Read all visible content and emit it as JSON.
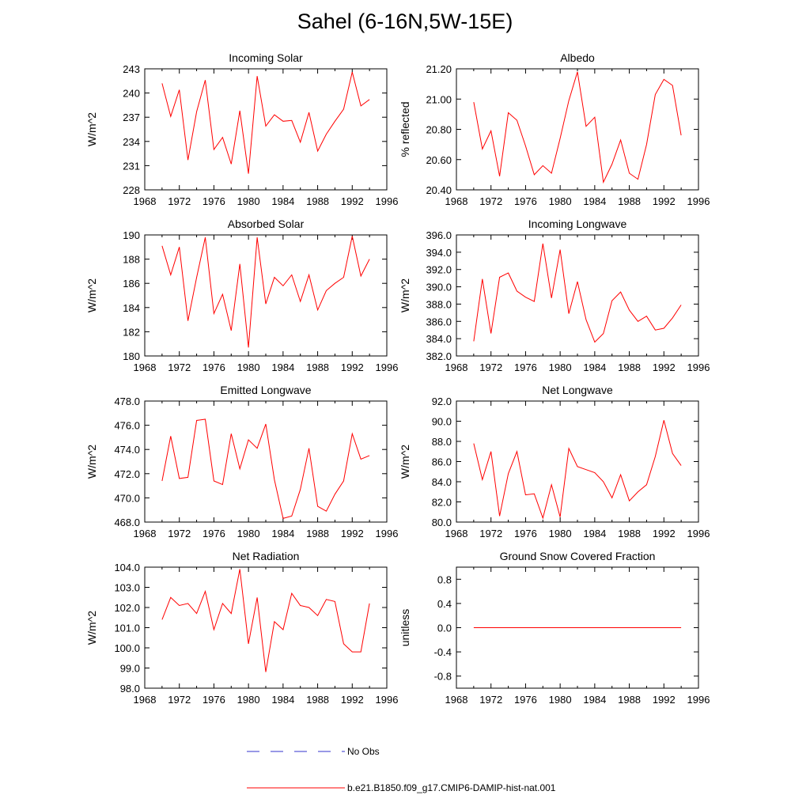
{
  "page_title": "Sahel (6-16N,5W-15E)",
  "line_color": "#ff0000",
  "obs_line_color": "#3333cc",
  "legend": {
    "obs_label": "No Obs",
    "model_label": "b.e21.B1850.f09_g17.CMIP6-DAMIP-hist-nat.001"
  },
  "chart_data": [
    {
      "type": "line",
      "title": "Incoming Solar",
      "ylabel": "W/m^2",
      "xlim": [
        1968,
        1996
      ],
      "x_ticks": [
        "1968",
        "1972",
        "1976",
        "1980",
        "1984",
        "1988",
        "1992",
        "1996"
      ],
      "ylim": [
        228,
        243
      ],
      "y_ticks": [
        "228",
        "231",
        "234",
        "237",
        "240",
        "243"
      ],
      "x": [
        1970,
        1971,
        1972,
        1973,
        1974,
        1975,
        1976,
        1977,
        1978,
        1979,
        1980,
        1981,
        1982,
        1983,
        1984,
        1985,
        1986,
        1987,
        1988,
        1989,
        1990,
        1991,
        1992,
        1993,
        1994
      ],
      "values": [
        241.2,
        237.1,
        240.4,
        231.7,
        237.7,
        241.6,
        233.0,
        234.5,
        231.2,
        237.8,
        230.0,
        242.1,
        235.9,
        237.3,
        236.5,
        236.6,
        233.9,
        237.6,
        232.8,
        234.9,
        236.5,
        238.0,
        242.6,
        238.4,
        239.2
      ]
    },
    {
      "type": "line",
      "title": "Albedo",
      "ylabel": "% reflected",
      "xlim": [
        1968,
        1996
      ],
      "x_ticks": [
        "1968",
        "1972",
        "1976",
        "1980",
        "1984",
        "1988",
        "1992",
        "1996"
      ],
      "ylim": [
        20.4,
        21.2
      ],
      "y_ticks": [
        "20.40",
        "20.60",
        "20.80",
        "21.00",
        "21.20"
      ],
      "x": [
        1970,
        1971,
        1972,
        1973,
        1974,
        1975,
        1976,
        1977,
        1978,
        1979,
        1980,
        1981,
        1982,
        1983,
        1984,
        1985,
        1986,
        1987,
        1988,
        1989,
        1990,
        1991,
        1992,
        1993,
        1994
      ],
      "values": [
        20.98,
        20.67,
        20.79,
        20.49,
        20.91,
        20.86,
        20.69,
        20.5,
        20.56,
        20.51,
        20.74,
        20.99,
        21.18,
        20.82,
        20.88,
        20.45,
        20.57,
        20.73,
        20.51,
        20.47,
        20.7,
        21.03,
        21.13,
        21.09,
        20.76
      ]
    },
    {
      "type": "line",
      "title": "Absorbed Solar",
      "ylabel": "W/m^2",
      "xlim": [
        1968,
        1996
      ],
      "x_ticks": [
        "1968",
        "1972",
        "1976",
        "1980",
        "1984",
        "1988",
        "1992",
        "1996"
      ],
      "ylim": [
        180,
        190
      ],
      "y_ticks": [
        "180",
        "182",
        "184",
        "186",
        "188",
        "190"
      ],
      "x": [
        1970,
        1971,
        1972,
        1973,
        1974,
        1975,
        1976,
        1977,
        1978,
        1979,
        1980,
        1981,
        1982,
        1983,
        1984,
        1985,
        1986,
        1987,
        1988,
        1989,
        1990,
        1991,
        1992,
        1993,
        1994
      ],
      "values": [
        189.1,
        186.7,
        189.0,
        182.9,
        186.5,
        189.8,
        183.5,
        185.1,
        182.1,
        187.6,
        180.7,
        189.8,
        184.3,
        186.5,
        185.8,
        186.7,
        184.5,
        186.7,
        183.8,
        185.4,
        186.0,
        186.5,
        189.9,
        186.6,
        188.0
      ]
    },
    {
      "type": "line",
      "title": "Incoming Longwave",
      "ylabel": "W/m^2",
      "xlim": [
        1968,
        1996
      ],
      "x_ticks": [
        "1968",
        "1972",
        "1976",
        "1980",
        "1984",
        "1988",
        "1992",
        "1996"
      ],
      "ylim": [
        382,
        396
      ],
      "y_ticks": [
        "382.0",
        "384.0",
        "386.0",
        "388.0",
        "390.0",
        "392.0",
        "394.0",
        "396.0"
      ],
      "x": [
        1970,
        1971,
        1972,
        1973,
        1974,
        1975,
        1976,
        1977,
        1978,
        1979,
        1980,
        1981,
        1982,
        1983,
        1984,
        1985,
        1986,
        1987,
        1988,
        1989,
        1990,
        1991,
        1992,
        1993,
        1994
      ],
      "values": [
        383.7,
        390.9,
        384.6,
        391.1,
        391.6,
        389.5,
        388.8,
        388.3,
        395.0,
        388.7,
        394.3,
        386.9,
        390.6,
        386.2,
        383.6,
        384.6,
        388.4,
        389.4,
        387.3,
        386.0,
        386.6,
        385.0,
        385.2,
        386.4,
        387.9
      ]
    },
    {
      "type": "line",
      "title": "Emitted Longwave",
      "ylabel": "W/m^2",
      "xlim": [
        1968,
        1996
      ],
      "x_ticks": [
        "1968",
        "1972",
        "1976",
        "1980",
        "1984",
        "1988",
        "1992",
        "1996"
      ],
      "ylim": [
        468,
        478
      ],
      "y_ticks": [
        "468.0",
        "470.0",
        "472.0",
        "474.0",
        "476.0",
        "478.0"
      ],
      "x": [
        1970,
        1971,
        1972,
        1973,
        1974,
        1975,
        1976,
        1977,
        1978,
        1979,
        1980,
        1981,
        1982,
        1983,
        1984,
        1985,
        1986,
        1987,
        1988,
        1989,
        1990,
        1991,
        1992,
        1993,
        1994
      ],
      "values": [
        471.4,
        475.1,
        471.6,
        471.7,
        476.4,
        476.5,
        471.4,
        471.1,
        475.3,
        472.4,
        474.8,
        474.1,
        476.1,
        471.5,
        468.3,
        468.5,
        470.7,
        474.1,
        469.3,
        468.9,
        470.3,
        471.4,
        475.3,
        473.2,
        473.5
      ]
    },
    {
      "type": "line",
      "title": "Net Longwave",
      "ylabel": "W/m^2",
      "xlim": [
        1968,
        1996
      ],
      "x_ticks": [
        "1968",
        "1972",
        "1976",
        "1980",
        "1984",
        "1988",
        "1992",
        "1996"
      ],
      "ylim": [
        80,
        92
      ],
      "y_ticks": [
        "80.0",
        "82.0",
        "84.0",
        "86.0",
        "88.0",
        "90.0",
        "92.0"
      ],
      "x": [
        1970,
        1971,
        1972,
        1973,
        1974,
        1975,
        1976,
        1977,
        1978,
        1979,
        1980,
        1981,
        1982,
        1983,
        1984,
        1985,
        1986,
        1987,
        1988,
        1989,
        1990,
        1991,
        1992,
        1993,
        1994
      ],
      "values": [
        87.8,
        84.2,
        87.0,
        80.6,
        84.8,
        87.0,
        82.7,
        82.8,
        80.4,
        83.7,
        80.5,
        87.3,
        85.5,
        85.2,
        84.9,
        84.0,
        82.4,
        84.7,
        82.1,
        83.0,
        83.7,
        86.5,
        90.1,
        86.8,
        85.6
      ]
    },
    {
      "type": "line",
      "title": "Net Radiation",
      "ylabel": "W/m^2",
      "xlim": [
        1968,
        1996
      ],
      "x_ticks": [
        "1968",
        "1972",
        "1976",
        "1980",
        "1984",
        "1988",
        "1992",
        "1996"
      ],
      "ylim": [
        98,
        104
      ],
      "y_ticks": [
        "98.0",
        "99.0",
        "100.0",
        "101.0",
        "102.0",
        "103.0",
        "104.0"
      ],
      "x": [
        1970,
        1971,
        1972,
        1973,
        1974,
        1975,
        1976,
        1977,
        1978,
        1979,
        1980,
        1981,
        1982,
        1983,
        1984,
        1985,
        1986,
        1987,
        1988,
        1989,
        1990,
        1991,
        1992,
        1993,
        1994
      ],
      "values": [
        101.4,
        102.5,
        102.1,
        102.2,
        101.7,
        102.8,
        100.9,
        102.2,
        101.7,
        103.9,
        100.2,
        102.5,
        98.8,
        101.3,
        100.9,
        102.7,
        102.1,
        102.0,
        101.6,
        102.4,
        102.3,
        100.2,
        99.8,
        99.8,
        102.2
      ]
    },
    {
      "type": "line",
      "title": "Ground Snow Covered Fraction",
      "ylabel": "unitless",
      "xlim": [
        1968,
        1996
      ],
      "x_ticks": [
        "1968",
        "1972",
        "1976",
        "1980",
        "1984",
        "1988",
        "1992",
        "1996"
      ],
      "ylim": [
        -1.0,
        1.0
      ],
      "y_ticks": [
        "-0.8",
        "-0.4",
        "0.0",
        "0.4",
        "0.8"
      ],
      "y_tick_values": [
        -0.8,
        -0.4,
        0.0,
        0.4,
        0.8
      ],
      "x": [
        1970,
        1971,
        1972,
        1973,
        1974,
        1975,
        1976,
        1977,
        1978,
        1979,
        1980,
        1981,
        1982,
        1983,
        1984,
        1985,
        1986,
        1987,
        1988,
        1989,
        1990,
        1991,
        1992,
        1993,
        1994
      ],
      "values": [
        0,
        0,
        0,
        0,
        0,
        0,
        0,
        0,
        0,
        0,
        0,
        0,
        0,
        0,
        0,
        0,
        0,
        0,
        0,
        0,
        0,
        0,
        0,
        0,
        0
      ]
    }
  ]
}
